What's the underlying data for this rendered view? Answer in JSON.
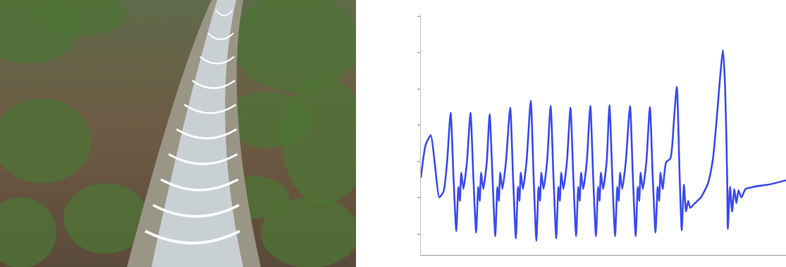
{
  "chart_data": {
    "type": "line",
    "color": "#3a4bef",
    "x": [
      0,
      7,
      14,
      20,
      26,
      32,
      37,
      42,
      46,
      50,
      53,
      55,
      57,
      60,
      65,
      70,
      74,
      78,
      81,
      83,
      85,
      88,
      93,
      97,
      101,
      105,
      108,
      110,
      112,
      115,
      120,
      126,
      130,
      134,
      137,
      139,
      141,
      144,
      149,
      155,
      159,
      163,
      166,
      168,
      170,
      173,
      178,
      183,
      187,
      191,
      194,
      196,
      198,
      201,
      206,
      211,
      215,
      219,
      222,
      224,
      226,
      229,
      234,
      239,
      243,
      247,
      250,
      252,
      254,
      257,
      262,
      266,
      270,
      274,
      277,
      279,
      281,
      284,
      289,
      295,
      299,
      303,
      306,
      308,
      310,
      313,
      318,
      323,
      327,
      331,
      334,
      336,
      338,
      341,
      346,
      352,
      357,
      361,
      365,
      368,
      371,
      374,
      377,
      380,
      385,
      395,
      405,
      412,
      418,
      422,
      426,
      429,
      432,
      433,
      436,
      439,
      442,
      445,
      448,
      452,
      458,
      465,
      475,
      490,
      515
    ],
    "values": [
      1.55,
      2.47,
      2.72,
      1.88,
      1.01,
      1.17,
      1.98,
      3.34,
      1.59,
      0.08,
      1.3,
      0.91,
      1.69,
      1.24,
      1.98,
      3.34,
      1.59,
      0.04,
      1.3,
      0.91,
      1.69,
      1.24,
      1.98,
      3.3,
      1.59,
      -0.06,
      1.3,
      0.91,
      1.69,
      1.24,
      1.98,
      3.48,
      1.59,
      -0.12,
      1.3,
      0.91,
      1.69,
      1.24,
      1.98,
      3.67,
      1.59,
      -0.19,
      1.3,
      0.91,
      1.69,
      1.24,
      1.98,
      3.53,
      1.59,
      -0.12,
      1.3,
      0.91,
      1.69,
      1.24,
      1.98,
      3.48,
      1.59,
      -0.06,
      1.3,
      0.91,
      1.69,
      1.24,
      1.98,
      3.53,
      1.59,
      -0.06,
      1.3,
      0.91,
      1.69,
      1.24,
      1.98,
      3.55,
      1.59,
      -0.06,
      1.3,
      0.91,
      1.69,
      1.24,
      1.98,
      3.53,
      1.59,
      -0.06,
      1.3,
      0.91,
      1.69,
      1.24,
      1.98,
      3.5,
      1.59,
      0.04,
      1.3,
      0.91,
      1.69,
      1.24,
      1.98,
      2.08,
      3.15,
      4.06,
      1.59,
      0.1,
      1.36,
      0.62,
      0.91,
      0.72,
      0.82,
      1.01,
      1.4,
      2.08,
      3.34,
      4.31,
      5.07,
      4.12,
      1.59,
      0.14,
      1.3,
      0.62,
      1.24,
      0.85,
      1.2,
      1.01,
      1.24,
      1.28,
      1.32,
      1.36,
      1.48
    ],
    "xlim": [
      0,
      515
    ],
    "xticks": [],
    "ylim": [
      -0.58,
      6.06
    ],
    "yticks": [
      0,
      1,
      2,
      3,
      4,
      5,
      6
    ],
    "tick_labels": false,
    "grid": false
  }
}
